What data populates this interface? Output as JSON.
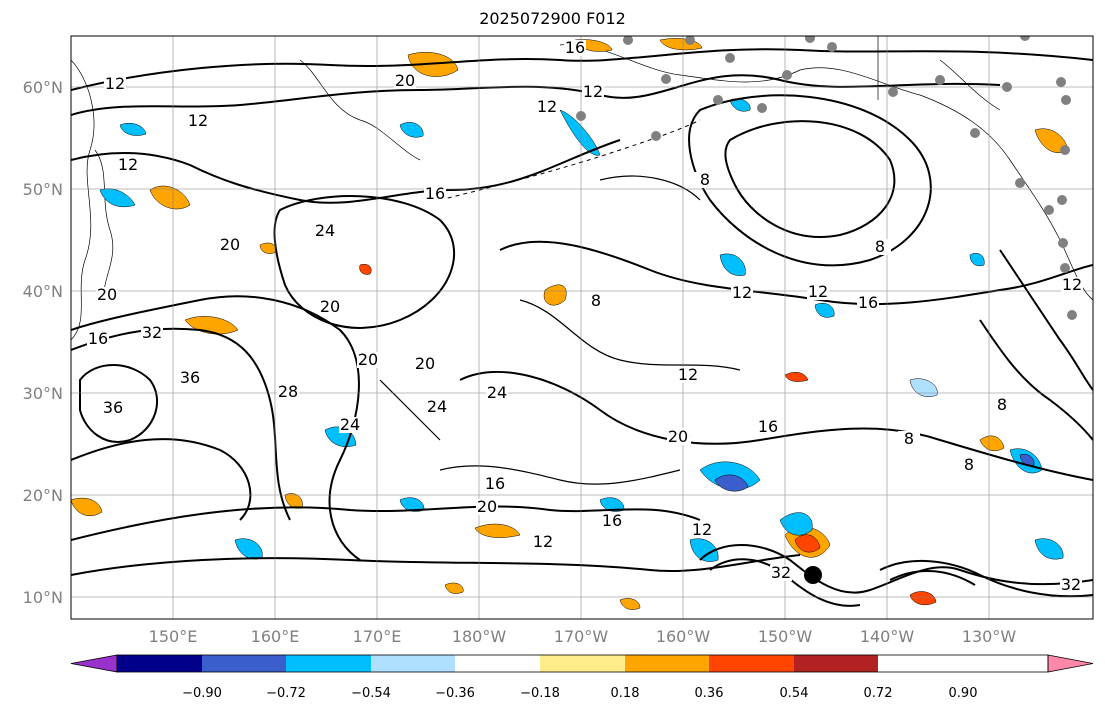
{
  "title": "2025072900 F012",
  "lat_labels": [
    "60°N",
    "50°N",
    "40°N",
    "30°N",
    "20°N",
    "10°N"
  ],
  "lon_labels": [
    "150°E",
    "160°E",
    "170°E",
    "180°W",
    "170°W",
    "160°W",
    "150°W",
    "140°W",
    "130°W"
  ],
  "colorbar": {
    "colors": [
      "#9932cc",
      "#00008b",
      "#3a5fcd",
      "#00bfff",
      "#afe0ff",
      "#ffffff",
      "#ffec8b",
      "#ffa500",
      "#ff4500",
      "#b22222",
      "#ff88aa"
    ],
    "tick_labels": [
      "−0.90",
      "−0.72",
      "−0.54",
      "−0.36",
      "−0.18",
      "0.18",
      "0.36",
      "0.54",
      "0.72",
      "0.90"
    ]
  },
  "contour_labels": [
    "16",
    "12",
    "20",
    "12",
    "12",
    "12",
    "12",
    "20",
    "20",
    "16",
    "24",
    "20",
    "16",
    "20",
    "20",
    "32",
    "36",
    "36",
    "28",
    "24",
    "24",
    "20",
    "12",
    "16",
    "12",
    "8",
    "8",
    "16",
    "12",
    "8",
    "8",
    "12",
    "24",
    "20",
    "16",
    "12",
    "16",
    "20",
    "8",
    "12",
    "32",
    "32",
    "8"
  ]
}
